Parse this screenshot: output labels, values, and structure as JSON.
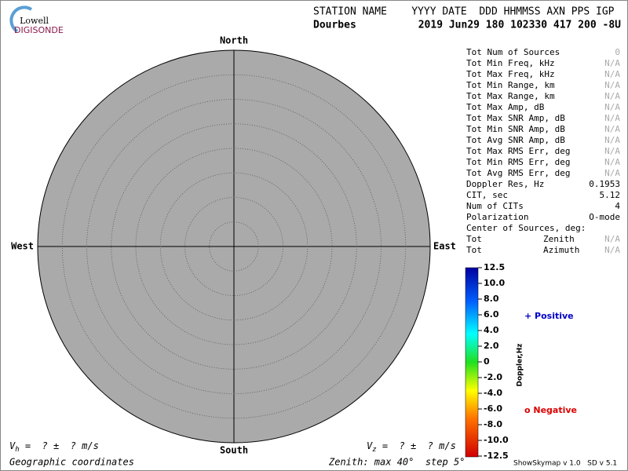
{
  "logo": {
    "top": "Lowell",
    "bottom": "DIGISONDE"
  },
  "header": {
    "columns": "STATION NAME    YYYY DATE  DDD HHMMSS AXN PPS IGP",
    "station": "Dourbes",
    "values": "2019 Jun29 180 102330 417 200 -8U"
  },
  "skymap": {
    "north": "North",
    "south": "South",
    "west": "West",
    "east": "East"
  },
  "stats": [
    [
      "Tot Num of Sources",
      "0"
    ],
    [
      "Tot Min Freq, kHz",
      "N/A"
    ],
    [
      "Tot Max Freq, kHz",
      "N/A"
    ],
    [
      "Tot Min Range, km",
      "N/A"
    ],
    [
      "Tot Max Range, km",
      "N/A"
    ],
    [
      "Tot Max Amp, dB",
      "N/A"
    ],
    [
      "Tot Max SNR Amp, dB",
      "N/A"
    ],
    [
      "Tot Min SNR Amp, dB",
      "N/A"
    ],
    [
      "Tot Avg SNR Amp, dB",
      "N/A"
    ],
    [
      "Tot Max RMS Err, deg",
      "N/A"
    ],
    [
      "Tot Min RMS Err, deg",
      "N/A"
    ],
    [
      "Tot Avg RMS Err, deg",
      "N/A"
    ],
    [
      "Doppler Res, Hz",
      "0.1953"
    ],
    [
      "CIT, sec",
      "5.12"
    ],
    [
      "Num of CITs",
      "4"
    ],
    [
      "Polarization",
      "O-mode"
    ]
  ],
  "center": {
    "title": "Center of Sources, deg:",
    "rows": [
      [
        "Tot",
        "Zenith",
        "N/A"
      ],
      [
        "Tot",
        "Azimuth",
        "N/A"
      ]
    ]
  },
  "colorbar": {
    "label": "Doppler,Hz",
    "ticks": [
      "12.5",
      "10.0",
      "8.0",
      "6.0",
      "4.0",
      "2.0",
      "0",
      "-2.0",
      "-4.0",
      "-6.0",
      "-8.0",
      "-10.0",
      "-12.5"
    ]
  },
  "legend": {
    "positive": "+ Positive",
    "negative": "o Negative"
  },
  "footer": {
    "vh": {
      "symbol": "V",
      "sub": "h",
      "text": " =  ? ±  ? m/s"
    },
    "vz": {
      "symbol": "V",
      "sub": "z",
      "text": " =  ? ±  ? m/s"
    },
    "coords": "Geographic coordinates",
    "zenith": "Zenith: max 40°  step 5°",
    "version": "ShowSkymap v 1.0   SD v 5.1"
  }
}
